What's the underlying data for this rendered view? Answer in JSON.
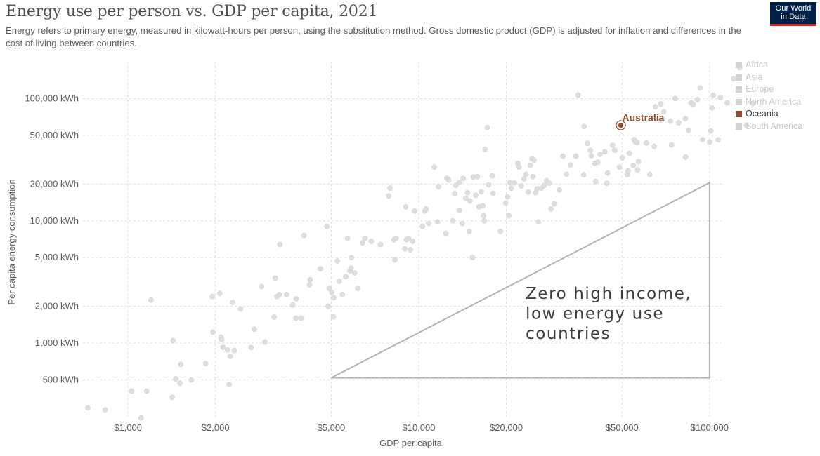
{
  "header": {
    "title": "Energy use per person vs. GDP per capita, 2021",
    "subtitle_parts": [
      {
        "text": "Energy refers to ",
        "link": false
      },
      {
        "text": "primary energy",
        "link": true
      },
      {
        "text": ", measured in ",
        "link": false
      },
      {
        "text": "kilowatt-hours",
        "link": true
      },
      {
        "text": " per person, using the ",
        "link": false
      },
      {
        "text": "substitution method",
        "link": true
      },
      {
        "text": ". Gross domestic product (GDP) is adjusted for inflation and differences in the cost of living between countries.",
        "link": false
      }
    ]
  },
  "logo": {
    "line1": "Our World",
    "line2": "in Data",
    "bg": "#002147",
    "accent": "#ce261e"
  },
  "legend": {
    "items": [
      {
        "label": "Africa",
        "active": false
      },
      {
        "label": "Asia",
        "active": false
      },
      {
        "label": "Europe",
        "active": false
      },
      {
        "label": "North America",
        "active": false
      },
      {
        "label": "Oceania",
        "active": true
      },
      {
        "label": "South America",
        "active": false
      }
    ],
    "active_color": "#8c4d2d",
    "inactive_color": "#d3d3d3"
  },
  "chart_data": {
    "type": "scatter",
    "xlabel": "GDP per capita",
    "ylabel": "Per capita energy consumption",
    "xscale": "log",
    "yscale": "log",
    "xlim": [
      700,
      110000
    ],
    "ylim": [
      250,
      200000
    ],
    "xticks": [
      {
        "value": 1000,
        "label": "$1,000"
      },
      {
        "value": 2000,
        "label": "$2,000"
      },
      {
        "value": 5000,
        "label": "$5,000"
      },
      {
        "value": 10000,
        "label": "$10,000"
      },
      {
        "value": 20000,
        "label": "$20,000"
      },
      {
        "value": 50000,
        "label": "$50,000"
      },
      {
        "value": 100000,
        "label": "$100,000"
      }
    ],
    "yticks": [
      {
        "value": 500,
        "label": "500 kWh"
      },
      {
        "value": 1000,
        "label": "1,000 kWh"
      },
      {
        "value": 2000,
        "label": "2,000 kWh"
      },
      {
        "value": 5000,
        "label": "5,000 kWh"
      },
      {
        "value": 10000,
        "label": "10,000 kWh"
      },
      {
        "value": 20000,
        "label": "20,000 kWh"
      },
      {
        "value": 50000,
        "label": "50,000 kWh"
      },
      {
        "value": 100000,
        "label": "100,000 kWh"
      }
    ],
    "grid": true,
    "highlight": {
      "label": "Australia",
      "x": 49500,
      "y": 60500,
      "color": "#8c4d2d"
    },
    "annotation": {
      "lines": [
        "Zero high income,",
        "low energy use",
        "countries"
      ],
      "triangle": [
        [
          5000,
          520
        ],
        [
          100000,
          520
        ],
        [
          100000,
          20500
        ]
      ],
      "color": "#b4b4b4"
    },
    "point_color": "#dedede",
    "points": [
      [
        728,
        295
      ],
      [
        835,
        285
      ],
      [
        1030,
        405
      ],
      [
        1160,
        405
      ],
      [
        1110,
        245
      ],
      [
        1200,
        2250
      ],
      [
        1420,
        360
      ],
      [
        1430,
        1050
      ],
      [
        1460,
        510
      ],
      [
        1510,
        470
      ],
      [
        1520,
        670
      ],
      [
        1650,
        500
      ],
      [
        1850,
        680
      ],
      [
        1950,
        2400
      ],
      [
        1960,
        1230
      ],
      [
        2070,
        2550
      ],
      [
        2090,
        1120
      ],
      [
        2100,
        1070
      ],
      [
        2120,
        925
      ],
      [
        2200,
        880
      ],
      [
        2230,
        460
      ],
      [
        2250,
        780
      ],
      [
        2290,
        2150
      ],
      [
        2320,
        870
      ],
      [
        2440,
        1900
      ],
      [
        2650,
        920
      ],
      [
        2720,
        1300
      ],
      [
        2880,
        2900
      ],
      [
        2960,
        1020
      ],
      [
        3180,
        1630
      ],
      [
        3210,
        3400
      ],
      [
        3250,
        2400
      ],
      [
        3320,
        2500
      ],
      [
        3330,
        6400
      ],
      [
        3510,
        2500
      ],
      [
        3690,
        2050
      ],
      [
        3780,
        1600
      ],
      [
        3790,
        2300
      ],
      [
        3940,
        1600
      ],
      [
        4030,
        7600
      ],
      [
        4210,
        3000
      ],
      [
        4230,
        3300
      ],
      [
        4590,
        4050
      ],
      [
        4830,
        9000
      ],
      [
        4880,
        2000
      ],
      [
        4920,
        2800
      ],
      [
        5020,
        2600
      ],
      [
        5090,
        1640
      ],
      [
        5100,
        2350
      ],
      [
        5250,
        4700
      ],
      [
        5330,
        3200
      ],
      [
        5460,
        2500
      ],
      [
        5610,
        3500
      ],
      [
        5690,
        7200
      ],
      [
        5800,
        3900
      ],
      [
        5850,
        4100
      ],
      [
        5860,
        5000
      ],
      [
        6020,
        3750
      ],
      [
        6160,
        2800
      ],
      [
        6410,
        6600
      ],
      [
        6530,
        7200
      ],
      [
        6870,
        6800
      ],
      [
        7380,
        6400
      ],
      [
        7880,
        16000
      ],
      [
        7960,
        18500
      ],
      [
        8220,
        7000
      ],
      [
        8280,
        4800
      ],
      [
        8350,
        7200
      ],
      [
        8950,
        5900
      ],
      [
        9020,
        13000
      ],
      [
        9070,
        7000
      ],
      [
        9220,
        7200
      ],
      [
        9360,
        5800
      ],
      [
        9530,
        6800
      ],
      [
        9670,
        12000
      ],
      [
        10300,
        9000
      ],
      [
        10500,
        12000
      ],
      [
        10600,
        12500
      ],
      [
        10800,
        9500
      ],
      [
        11300,
        27500
      ],
      [
        11600,
        9800
      ],
      [
        11700,
        19000
      ],
      [
        12400,
        7900
      ],
      [
        12500,
        22300
      ],
      [
        12700,
        21500
      ],
      [
        13100,
        10000
      ],
      [
        13300,
        16700
      ],
      [
        13400,
        19500
      ],
      [
        13800,
        12200
      ],
      [
        13800,
        20500
      ],
      [
        14100,
        9500
      ],
      [
        14200,
        22200
      ],
      [
        14500,
        15300
      ],
      [
        14700,
        17000
      ],
      [
        14900,
        8200
      ],
      [
        15000,
        14500
      ],
      [
        15300,
        5000
      ],
      [
        15400,
        22800
      ],
      [
        15700,
        16200
      ],
      [
        15900,
        23000
      ],
      [
        16100,
        13000
      ],
      [
        16400,
        17300
      ],
      [
        16600,
        13300
      ],
      [
        16700,
        11000
      ],
      [
        16800,
        10000
      ],
      [
        16900,
        38500
      ],
      [
        17200,
        58000
      ],
      [
        17400,
        19700
      ],
      [
        17900,
        23300
      ],
      [
        18000,
        16800
      ],
      [
        19100,
        8200
      ],
      [
        19900,
        14000
      ],
      [
        20200,
        15700
      ],
      [
        20400,
        11000
      ],
      [
        20600,
        20500
      ],
      [
        20800,
        18500
      ],
      [
        21300,
        20400
      ],
      [
        21900,
        29500
      ],
      [
        22100,
        27500
      ],
      [
        22500,
        19300
      ],
      [
        23000,
        22000
      ],
      [
        23400,
        24000
      ],
      [
        23800,
        17200
      ],
      [
        24200,
        28500
      ],
      [
        24500,
        32200
      ],
      [
        24700,
        23000
      ],
      [
        24900,
        31300
      ],
      [
        25200,
        17000
      ],
      [
        25500,
        18300
      ],
      [
        25800,
        9800
      ],
      [
        26400,
        18500
      ],
      [
        27000,
        19500
      ],
      [
        27500,
        21300
      ],
      [
        28100,
        20300
      ],
      [
        28500,
        12500
      ],
      [
        29200,
        13800
      ],
      [
        30400,
        17900
      ],
      [
        31300,
        33800
      ],
      [
        32200,
        24000
      ],
      [
        33200,
        28600
      ],
      [
        34700,
        33800
      ],
      [
        35300,
        107000
      ],
      [
        36900,
        23800
      ],
      [
        37000,
        59000
      ],
      [
        38000,
        43000
      ],
      [
        38900,
        37700
      ],
      [
        39200,
        34000
      ],
      [
        40300,
        29500
      ],
      [
        40600,
        21000
      ],
      [
        41300,
        30200
      ],
      [
        42000,
        35000
      ],
      [
        43600,
        36700
      ],
      [
        44300,
        20300
      ],
      [
        44600,
        24600
      ],
      [
        46400,
        41500
      ],
      [
        47200,
        37800
      ],
      [
        49000,
        27500
      ],
      [
        50100,
        32800
      ],
      [
        52100,
        23800
      ],
      [
        52400,
        25600
      ],
      [
        53000,
        35700
      ],
      [
        54600,
        28400
      ],
      [
        55000,
        46100
      ],
      [
        55500,
        44400
      ],
      [
        56400,
        43700
      ],
      [
        56500,
        26100
      ],
      [
        57000,
        30500
      ],
      [
        60600,
        43300
      ],
      [
        62300,
        23900
      ],
      [
        64500,
        40600
      ],
      [
        65100,
        85600
      ],
      [
        67500,
        66000
      ],
      [
        68000,
        90400
      ],
      [
        69600,
        78000
      ],
      [
        73300,
        65200
      ],
      [
        74000,
        41800
      ],
      [
        76200,
        100000
      ],
      [
        78300,
        63400
      ],
      [
        82600,
        68400
      ],
      [
        82700,
        33300
      ],
      [
        84600,
        55000
      ],
      [
        86400,
        92000
      ],
      [
        87800,
        89700
      ],
      [
        90800,
        98000
      ],
      [
        92800,
        122000
      ],
      [
        94700,
        46200
      ],
      [
        100000,
        44000
      ],
      [
        101000,
        54500
      ],
      [
        102000,
        84000
      ],
      [
        103000,
        106500
      ],
      [
        107000,
        46000
      ],
      [
        109000,
        102000
      ],
      [
        115000,
        92000
      ],
      [
        121000,
        145000
      ],
      [
        127000,
        179000
      ],
      [
        134000,
        60500
      ],
      [
        141000,
        91300
      ]
    ]
  }
}
